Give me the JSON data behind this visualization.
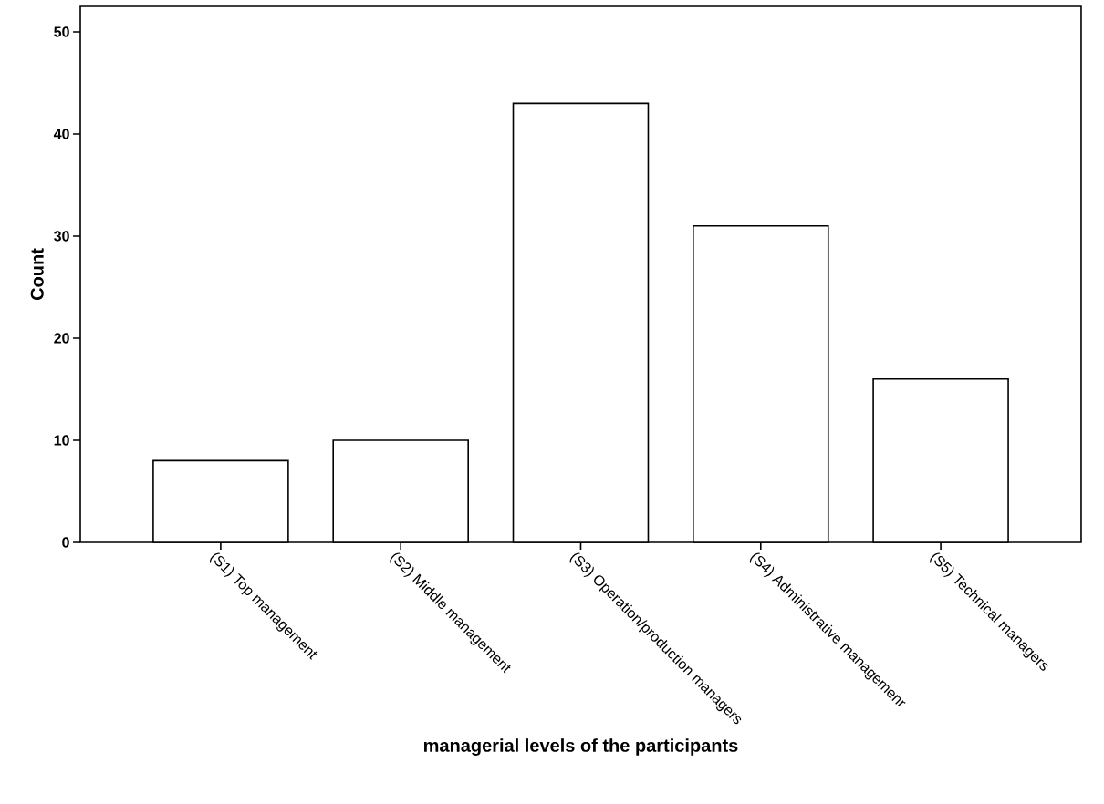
{
  "chart_data": {
    "type": "bar",
    "xlabel": "managerial levels of the participants",
    "ylabel": "Count",
    "categories": [
      "(S1) Top management",
      "(S2) Middle management",
      "(S3) Operation/production managers",
      "(S4) Administrative managemenr",
      "(S5) Technical managers"
    ],
    "values": [
      8,
      10,
      43,
      31,
      16
    ],
    "color": "#ffffff",
    "ylim": [
      0,
      52.5
    ],
    "yticks": [
      0,
      10,
      20,
      30,
      40,
      50
    ],
    "grid": false
  }
}
